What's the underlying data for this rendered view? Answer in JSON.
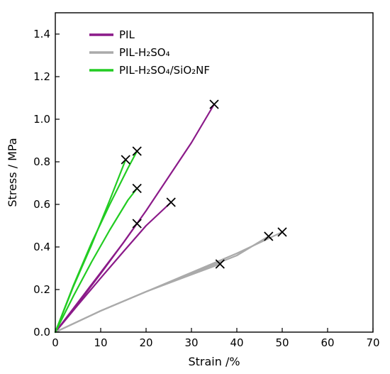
{
  "chart_data": {
    "type": "line",
    "xlabel": "Strain /%",
    "ylabel": "Stress / MPa",
    "xlim": [
      0,
      70
    ],
    "ylim": [
      0,
      1.5
    ],
    "xticks": [
      "0",
      "10",
      "20",
      "30",
      "40",
      "50",
      "60",
      "70"
    ],
    "yticks": [
      "0.0",
      "0.2",
      "0.4",
      "0.6",
      "0.8",
      "1.0",
      "1.2",
      "1.4"
    ],
    "grid": false,
    "legend_position": "top-left",
    "series": [
      {
        "name": "PIL",
        "color": "#8b1a89",
        "curves": [
          {
            "points": [
              [
                0,
                0
              ],
              [
                5,
                0.14
              ],
              [
                10,
                0.28
              ],
              [
                15,
                0.42
              ],
              [
                18,
                0.51
              ]
            ],
            "break": [
              18,
              0.51
            ]
          },
          {
            "points": [
              [
                0,
                0
              ],
              [
                5,
                0.128
              ],
              [
                10,
                0.254
              ],
              [
                15,
                0.378
              ],
              [
                20,
                0.5
              ],
              [
                25.5,
                0.61
              ]
            ],
            "break": [
              25.5,
              0.61
            ]
          },
          {
            "points": [
              [
                0,
                0
              ],
              [
                5,
                0.135
              ],
              [
                10,
                0.275
              ],
              [
                15,
                0.42
              ],
              [
                20,
                0.57
              ],
              [
                25,
                0.73
              ],
              [
                30,
                0.89
              ],
              [
                35,
                1.07
              ]
            ],
            "break": [
              35,
              1.07
            ]
          }
        ]
      },
      {
        "name": "PIL-H₂SO₄",
        "color": "#aaaaaa",
        "curves": [
          {
            "points": [
              [
                0,
                0
              ],
              [
                10,
                0.1
              ],
              [
                20,
                0.19
              ],
              [
                30,
                0.27
              ],
              [
                36.3,
                0.32
              ]
            ],
            "break": [
              36.3,
              0.32
            ]
          },
          {
            "points": [
              [
                0,
                0
              ],
              [
                10,
                0.1
              ],
              [
                20,
                0.19
              ],
              [
                30,
                0.275
              ],
              [
                40,
                0.36
              ],
              [
                47,
                0.45
              ]
            ],
            "break": [
              47,
              0.45
            ]
          },
          {
            "points": [
              [
                0,
                0
              ],
              [
                10,
                0.1
              ],
              [
                20,
                0.19
              ],
              [
                30,
                0.28
              ],
              [
                40,
                0.37
              ],
              [
                50,
                0.47
              ]
            ],
            "break": [
              50,
              0.47
            ]
          }
        ]
      },
      {
        "name": "PIL-H₂SO₄/SiO₂NF",
        "color": "#22cc22",
        "curves": [
          {
            "points": [
              [
                0,
                0
              ],
              [
                4,
                0.22
              ],
              [
                8,
                0.42
              ],
              [
                12,
                0.6
              ],
              [
                16,
                0.77
              ],
              [
                18,
                0.85
              ]
            ],
            "break": [
              18,
              0.85
            ]
          },
          {
            "points": [
              [
                0,
                0
              ],
              [
                4,
                0.215
              ],
              [
                8,
                0.41
              ],
              [
                12,
                0.62
              ],
              [
                15.5,
                0.81
              ]
            ],
            "break": [
              15.5,
              0.81
            ]
          },
          {
            "points": [
              [
                0,
                0
              ],
              [
                4,
                0.17
              ],
              [
                8,
                0.33
              ],
              [
                12,
                0.48
              ],
              [
                16,
                0.62
              ],
              [
                18,
                0.675
              ]
            ],
            "break": [
              18,
              0.675
            ]
          }
        ]
      }
    ]
  }
}
